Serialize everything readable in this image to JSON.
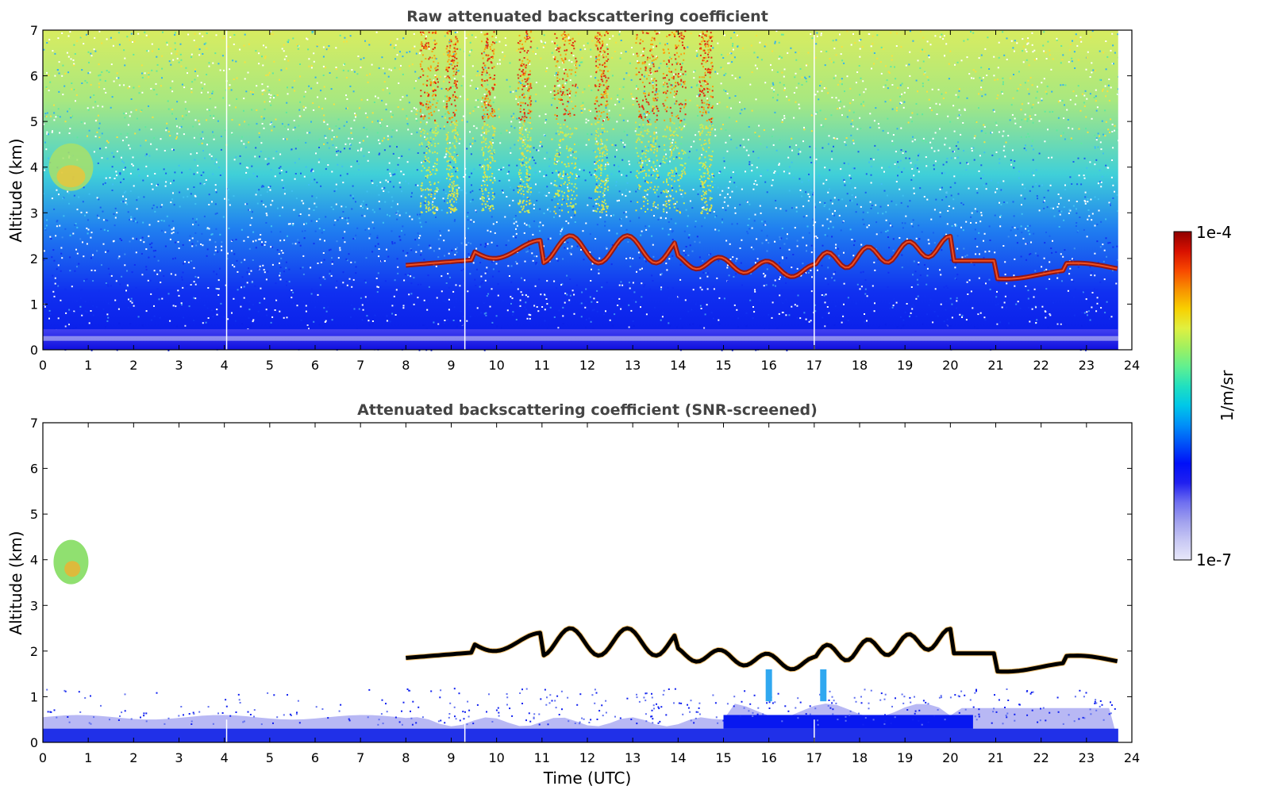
{
  "chart_data": [
    {
      "type": "heatmap",
      "title": "Raw attenuated backscattering coefficient",
      "xlabel": "",
      "ylabel": "Altitude (km)",
      "xlim": [
        0,
        24
      ],
      "ylim": [
        0,
        7
      ],
      "xticks": [
        "0",
        "1",
        "2",
        "3",
        "4",
        "5",
        "6",
        "7",
        "8",
        "9",
        "10",
        "11",
        "12",
        "13",
        "14",
        "15",
        "16",
        "17",
        "18",
        "19",
        "20",
        "21",
        "22",
        "23",
        "24"
      ],
      "yticks": [
        "0",
        "1",
        "2",
        "3",
        "4",
        "5",
        "6",
        "7"
      ],
      "data_end_hour": 23.7,
      "gap_lines_hours": [
        4.05,
        9.3,
        17.0
      ],
      "layers": [
        {
          "name": "near-surface",
          "altitude_km": [
            0,
            0.45
          ],
          "level": "low-mid"
        },
        {
          "name": "mid-level cloud",
          "time_hours": [
            0.3,
            1.0
          ],
          "altitude_km": [
            3.4,
            4.6
          ],
          "level": "mid-high"
        },
        {
          "name": "cloud base layer",
          "time_hours": [
            8.0,
            23.7
          ],
          "altitude_km": [
            1.5,
            2.8
          ],
          "level": "max"
        }
      ]
    },
    {
      "type": "heatmap",
      "title": "Attenuated backscattering coefficient (SNR-screened)",
      "xlabel": "Time (UTC)",
      "ylabel": "Altitude (km)",
      "xlim": [
        0,
        24
      ],
      "ylim": [
        0,
        7
      ],
      "xticks": [
        "0",
        "1",
        "2",
        "3",
        "4",
        "5",
        "6",
        "7",
        "8",
        "9",
        "10",
        "11",
        "12",
        "13",
        "14",
        "15",
        "16",
        "17",
        "18",
        "19",
        "20",
        "21",
        "22",
        "23",
        "24"
      ],
      "yticks": [
        "0",
        "1",
        "2",
        "3",
        "4",
        "5",
        "6",
        "7"
      ],
      "data_end_hour": 23.7
    }
  ],
  "colorbar": {
    "label": "1/m/sr",
    "min_label": "1e-7",
    "max_label": "1e-4",
    "scale": "log",
    "colors": [
      "#e8e8fa",
      "#c8c8f4",
      "#a0a0ee",
      "#6e6ef0",
      "#2020f0",
      "#0010f8",
      "#0050f8",
      "#0090f8",
      "#00c8e8",
      "#20e0c0",
      "#60f090",
      "#a0f060",
      "#e0f040",
      "#f8d000",
      "#f89000",
      "#f84800",
      "#d81000",
      "#900000"
    ]
  }
}
